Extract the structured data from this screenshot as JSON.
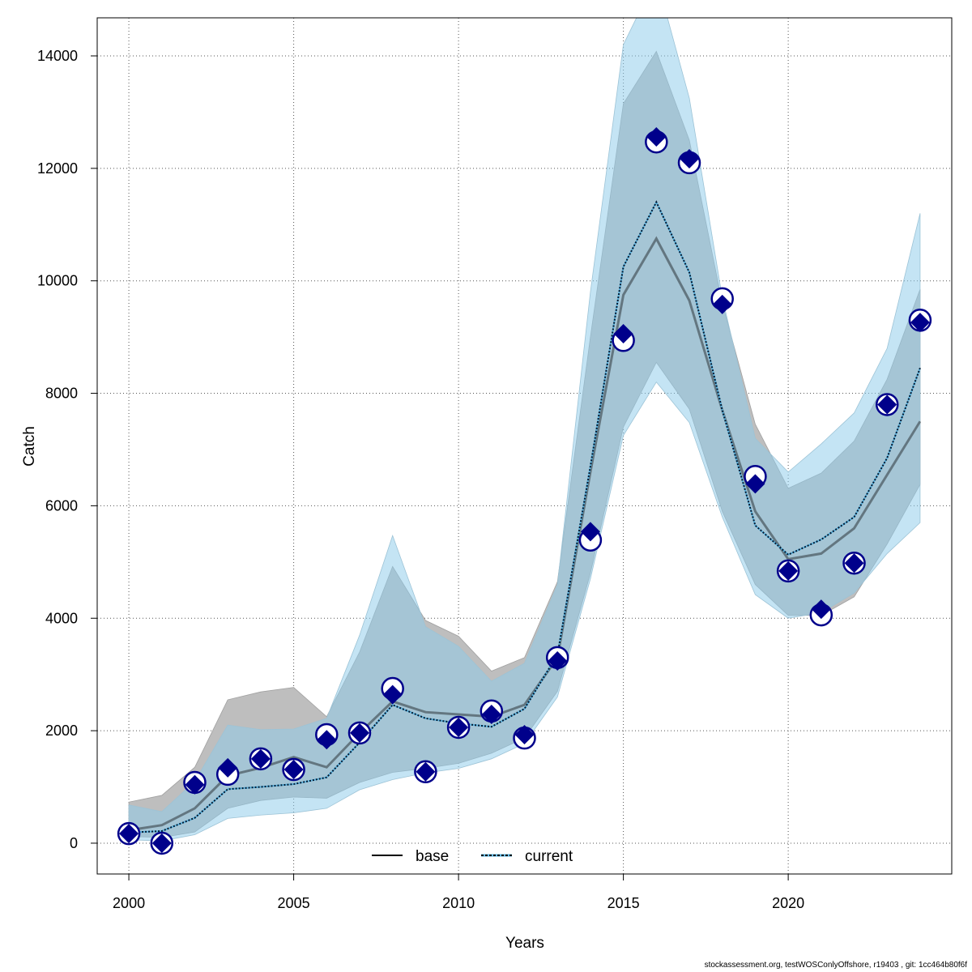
{
  "chart_data": {
    "type": "line",
    "title": "",
    "xlabel": "Years",
    "ylabel": "Catch",
    "xlim": [
      1999.04,
      2024.96
    ],
    "ylim": [
      -548,
      14677
    ],
    "grid": true,
    "legend_position": "bottom-center",
    "x_ticks": [
      2000,
      2005,
      2010,
      2015,
      2020
    ],
    "y_ticks": [
      0,
      2000,
      4000,
      6000,
      8000,
      10000,
      12000,
      14000
    ],
    "x": [
      2000,
      2001,
      2002,
      2003,
      2004,
      2005,
      2006,
      2007,
      2008,
      2009,
      2010,
      2011,
      2012,
      2013,
      2014,
      2015,
      2016,
      2017,
      2018,
      2019,
      2020,
      2021,
      2022,
      2023,
      2024
    ],
    "series": [
      {
        "name": "base",
        "line_style": "solid",
        "color": "#555555",
        "band_color": "#bebebe",
        "marker": "filled-diamond",
        "values": [
          230,
          320,
          620,
          1200,
          1340,
          1530,
          1350,
          1960,
          2520,
          2330,
          2290,
          2250,
          2460,
          3300,
          6600,
          9750,
          10750,
          9650,
          7700,
          5900,
          5050,
          5150,
          5600,
          6550,
          7500
        ],
        "band_upper": [
          730,
          850,
          1350,
          2550,
          2690,
          2770,
          2250,
          3400,
          4920,
          3960,
          3680,
          3060,
          3300,
          4650,
          9000,
          13150,
          14080,
          12500,
          9600,
          7450,
          6310,
          6580,
          7150,
          8250,
          9850
        ],
        "band_lower": [
          120,
          100,
          200,
          620,
          760,
          820,
          800,
          1080,
          1260,
          1330,
          1420,
          1600,
          1870,
          2700,
          4800,
          7400,
          8550,
          7720,
          5900,
          4600,
          4050,
          4050,
          4380,
          5320,
          6380
        ],
        "observed": [
          170,
          0,
          1040,
          1340,
          1500,
          1310,
          1840,
          1960,
          2640,
          1270,
          2060,
          2290,
          1930,
          3240,
          5540,
          9060,
          12560,
          12170,
          9580,
          6390,
          4840,
          4160,
          4980,
          7800,
          9260
        ]
      },
      {
        "name": "current",
        "line_style": "dotted",
        "color": "#003a66",
        "band_color": "#8ecbea",
        "marker": "open-circle",
        "values": [
          190,
          215,
          450,
          960,
          1000,
          1050,
          1170,
          1790,
          2460,
          2220,
          2130,
          2070,
          2390,
          3350,
          6700,
          10250,
          11400,
          10150,
          7700,
          5650,
          5130,
          5400,
          5800,
          6850,
          8450
        ],
        "band_upper": [
          680,
          560,
          1100,
          2100,
          2020,
          2030,
          2220,
          3700,
          5470,
          3850,
          3500,
          2880,
          3200,
          4600,
          9800,
          14200,
          15400,
          13250,
          9700,
          7200,
          6600,
          7100,
          7650,
          8800,
          11200
        ],
        "band_lower": [
          60,
          40,
          150,
          440,
          500,
          540,
          620,
          950,
          1130,
          1250,
          1330,
          1500,
          1770,
          2600,
          4700,
          7250,
          8200,
          7480,
          5800,
          4420,
          4000,
          4100,
          4450,
          5150,
          5700
        ],
        "observed": [
          170,
          0,
          1080,
          1225,
          1500,
          1310,
          1930,
          1960,
          2750,
          1270,
          2060,
          2350,
          1870,
          3300,
          5390,
          8940,
          12470,
          12100,
          9680,
          6520,
          4840,
          4060,
          4980,
          7800,
          9300
        ]
      }
    ],
    "marker_color": "#00008b"
  },
  "footer": "stockassessment.org, testWOSConlyOffshore, r19403 , git: 1cc464b80f6f"
}
